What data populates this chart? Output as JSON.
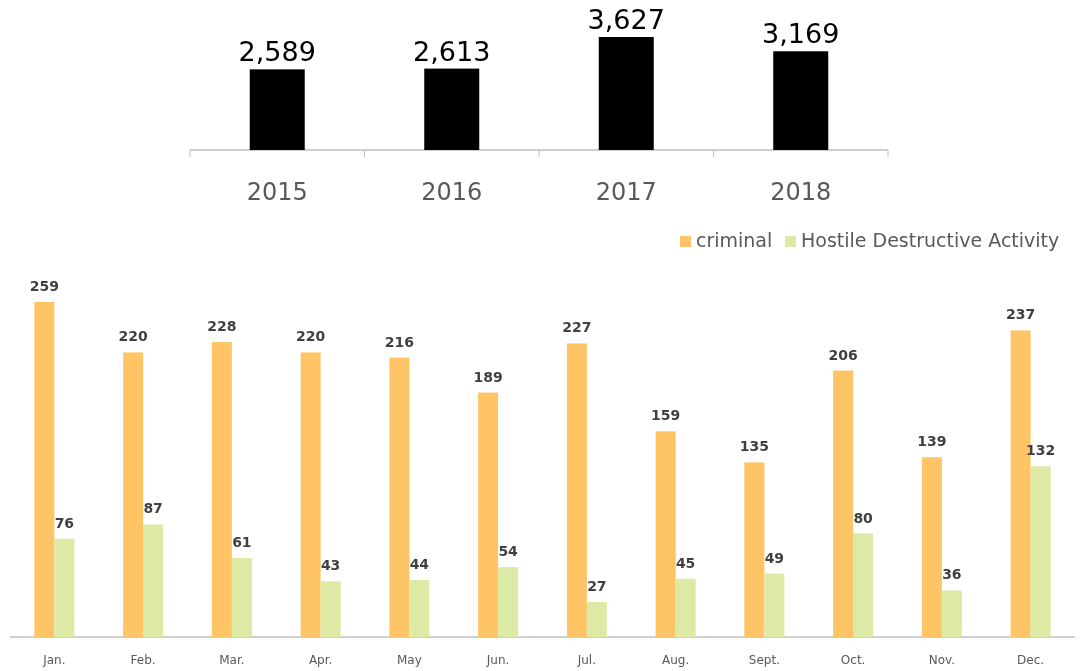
{
  "chart_data": [
    {
      "type": "bar",
      "categories": [
        "2015",
        "2016",
        "2017",
        "2018"
      ],
      "values": [
        2589,
        2613,
        3627,
        3169
      ],
      "value_labels": [
        "2,589",
        "2,613",
        "3,627",
        "3,169"
      ],
      "color": "#000000",
      "legend": false
    },
    {
      "type": "bar",
      "categories": [
        "Jan.",
        "Feb.",
        "Mar.",
        "Apr.",
        "May",
        "Jun.",
        "Jul.",
        "Aug.",
        "Sept.",
        "Oct.",
        "Nov.",
        "Dec."
      ],
      "series": [
        {
          "name": "criminal",
          "color": "#ffc466",
          "values": [
            259,
            220,
            228,
            220,
            216,
            189,
            227,
            159,
            135,
            206,
            139,
            237
          ]
        },
        {
          "name": "Hostile Destructive Activity",
          "color": "#dceaa6",
          "values": [
            76,
            87,
            61,
            43,
            44,
            54,
            27,
            45,
            49,
            80,
            36,
            132
          ]
        }
      ],
      "data_labels": true,
      "legend": "top right"
    }
  ]
}
